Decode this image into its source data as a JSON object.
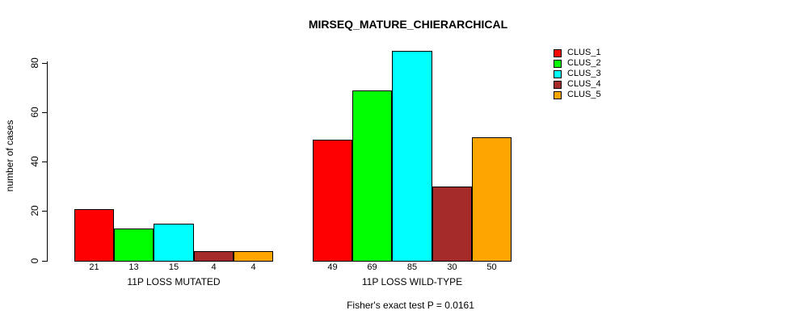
{
  "title": "MIRSEQ_MATURE_CHIERARCHICAL",
  "subtitle": "Fisher's exact test P = 0.0161",
  "chart_data": {
    "type": "bar",
    "title": "MIRSEQ_MATURE_CHIERARCHICAL",
    "xlabel": "",
    "ylabel": "number of cases",
    "ylim": [
      0,
      85
    ],
    "yticks": [
      0,
      20,
      40,
      60,
      80
    ],
    "grid": false,
    "legend_position": "right",
    "bar_value_labels_shown": true,
    "categories": [
      "11P LOSS MUTATED",
      "11P LOSS WILD-TYPE"
    ],
    "series": [
      {
        "name": "CLUS_1",
        "color": "#FF0000",
        "values": [
          21,
          49
        ]
      },
      {
        "name": "CLUS_2",
        "color": "#00FF00",
        "values": [
          13,
          69
        ]
      },
      {
        "name": "CLUS_3",
        "color": "#00FFFF",
        "values": [
          15,
          85
        ]
      },
      {
        "name": "CLUS_4",
        "color": "#A52A2A",
        "values": [
          4,
          30
        ]
      },
      {
        "name": "CLUS_5",
        "color": "#FFA500",
        "values": [
          4,
          50
        ]
      }
    ],
    "annotation": "Fisher's exact test P = 0.0161"
  }
}
